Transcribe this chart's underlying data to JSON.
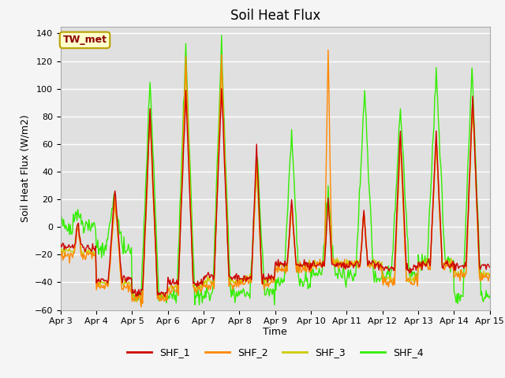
{
  "title": "Soil Heat Flux",
  "ylabel": "Soil Heat Flux (W/m2)",
  "xlabel": "Time",
  "ylim": [
    -60,
    145
  ],
  "xlim": [
    0,
    288
  ],
  "x_tick_labels": [
    "Apr 3",
    "Apr 4",
    "Apr 5",
    "Apr 6",
    "Apr 7",
    "Apr 8",
    "Apr 9",
    "Apr 10",
    "Apr 11",
    "Apr 12",
    "Apr 13",
    "Apr 14",
    "Apr 15"
  ],
  "x_tick_positions": [
    0,
    24,
    48,
    72,
    96,
    120,
    144,
    168,
    192,
    216,
    240,
    264,
    288
  ],
  "y_ticks": [
    -60,
    -40,
    -20,
    0,
    20,
    40,
    60,
    80,
    100,
    120,
    140
  ],
  "series_colors": [
    "#cc0000",
    "#ff8800",
    "#cccc00",
    "#33ee00"
  ],
  "series_names": [
    "SHF_1",
    "SHF_2",
    "SHF_3",
    "SHF_4"
  ],
  "legend_label": "TW_met",
  "bg_color": "#e0e0e0",
  "grid_color": "#ffffff",
  "fig_bg_color": "#f5f5f5",
  "title_fontsize": 12,
  "label_fontsize": 9,
  "tick_fontsize": 8,
  "linewidth": 1.0
}
